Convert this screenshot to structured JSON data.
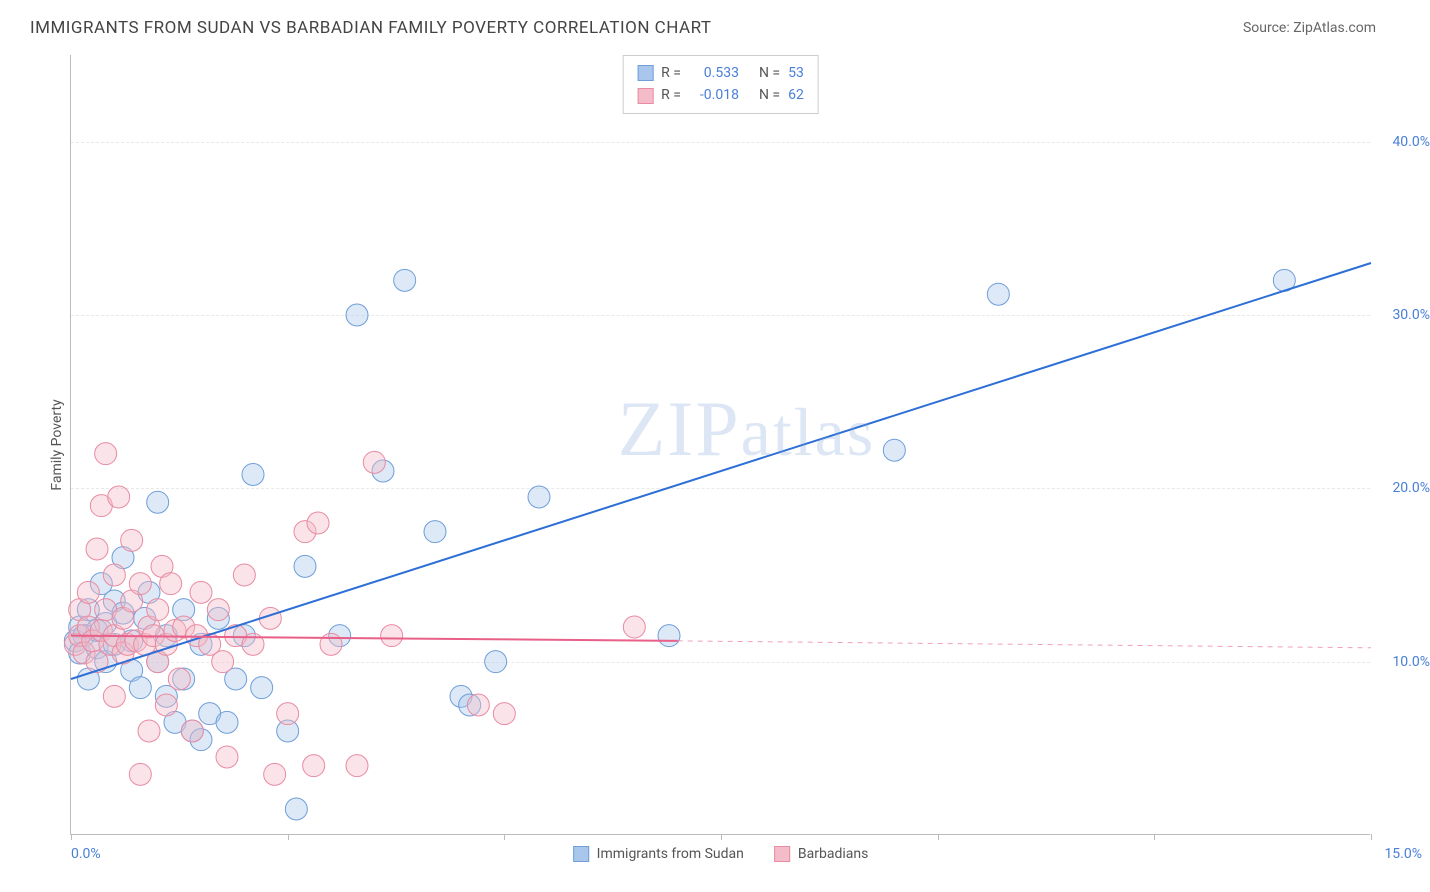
{
  "title": "IMMIGRANTS FROM SUDAN VS BARBADIAN FAMILY POVERTY CORRELATION CHART",
  "source_label": "Source: ",
  "source_name": "ZipAtlas.com",
  "watermark": "ZIPatlas",
  "chart": {
    "type": "scatter",
    "ylabel": "Family Poverty",
    "xlim": [
      0,
      15
    ],
    "ylim": [
      0,
      45
    ],
    "x_min_label": "0.0%",
    "x_max_label": "15.0%",
    "y_ticks": [
      10,
      20,
      30,
      40
    ],
    "y_tick_labels": [
      "10.0%",
      "20.0%",
      "30.0%",
      "40.0%"
    ],
    "x_ticks": [
      0,
      2.5,
      5,
      7.5,
      10,
      12.5,
      15
    ],
    "background_color": "#ffffff",
    "grid_color": "#e8e8e8",
    "axis_color": "#bbbbbb",
    "tick_label_color": "#4a7fd8",
    "marker_radius": 11,
    "marker_opacity": 0.4,
    "line_width": 2,
    "series": [
      {
        "name": "Immigrants from Sudan",
        "color_fill": "#a9c7ec",
        "color_stroke": "#6f9ed9",
        "line_color": "#2d6fd6",
        "R": "0.533",
        "N": "53",
        "regression": {
          "x1": 0,
          "y1": 9.0,
          "x2": 15,
          "y2": 33.0
        },
        "points": [
          [
            0.05,
            11.2
          ],
          [
            0.1,
            10.5
          ],
          [
            0.1,
            12.0
          ],
          [
            0.15,
            11.5
          ],
          [
            0.2,
            9.0
          ],
          [
            0.2,
            13.0
          ],
          [
            0.3,
            10.8
          ],
          [
            0.3,
            11.8
          ],
          [
            0.35,
            14.5
          ],
          [
            0.4,
            12.2
          ],
          [
            0.4,
            10.0
          ],
          [
            0.5,
            11.0
          ],
          [
            0.5,
            13.5
          ],
          [
            0.6,
            16.0
          ],
          [
            0.6,
            12.8
          ],
          [
            0.7,
            9.5
          ],
          [
            0.7,
            11.2
          ],
          [
            0.8,
            8.5
          ],
          [
            0.85,
            12.5
          ],
          [
            0.9,
            14.0
          ],
          [
            1.0,
            10.0
          ],
          [
            1.0,
            19.2
          ],
          [
            1.1,
            8.0
          ],
          [
            1.1,
            11.5
          ],
          [
            1.2,
            6.5
          ],
          [
            1.3,
            13.0
          ],
          [
            1.3,
            9.0
          ],
          [
            1.4,
            6.0
          ],
          [
            1.5,
            11.0
          ],
          [
            1.5,
            5.5
          ],
          [
            1.6,
            7.0
          ],
          [
            1.7,
            12.5
          ],
          [
            1.8,
            6.5
          ],
          [
            1.9,
            9.0
          ],
          [
            2.0,
            11.5
          ],
          [
            2.1,
            20.8
          ],
          [
            2.2,
            8.5
          ],
          [
            2.5,
            6.0
          ],
          [
            2.6,
            1.5
          ],
          [
            2.7,
            15.5
          ],
          [
            3.1,
            11.5
          ],
          [
            3.3,
            30.0
          ],
          [
            3.6,
            21.0
          ],
          [
            3.85,
            32.0
          ],
          [
            4.2,
            17.5
          ],
          [
            4.5,
            8.0
          ],
          [
            4.6,
            7.5
          ],
          [
            4.9,
            10.0
          ],
          [
            5.4,
            19.5
          ],
          [
            6.9,
            11.5
          ],
          [
            9.5,
            22.2
          ],
          [
            10.7,
            31.2
          ],
          [
            14.0,
            32.0
          ]
        ]
      },
      {
        "name": "Barbadians",
        "color_fill": "#f3bcc8",
        "color_stroke": "#e88ba3",
        "line_color": "#e85f88",
        "R": "-0.018",
        "N": "62",
        "regression": {
          "x1": 0,
          "y1": 11.5,
          "x2": 7,
          "y2": 11.2
        },
        "regression_dash": {
          "x1": 7,
          "y1": 11.2,
          "x2": 15,
          "y2": 10.8
        },
        "points": [
          [
            0.05,
            11.0
          ],
          [
            0.1,
            11.5
          ],
          [
            0.1,
            13.0
          ],
          [
            0.15,
            10.5
          ],
          [
            0.2,
            12.0
          ],
          [
            0.2,
            14.0
          ],
          [
            0.25,
            11.2
          ],
          [
            0.3,
            16.5
          ],
          [
            0.3,
            10.0
          ],
          [
            0.35,
            11.8
          ],
          [
            0.35,
            19.0
          ],
          [
            0.4,
            13.0
          ],
          [
            0.4,
            22.0
          ],
          [
            0.45,
            11.0
          ],
          [
            0.5,
            11.5
          ],
          [
            0.5,
            15.0
          ],
          [
            0.5,
            8.0
          ],
          [
            0.55,
            19.5
          ],
          [
            0.6,
            12.5
          ],
          [
            0.6,
            10.5
          ],
          [
            0.65,
            11.0
          ],
          [
            0.7,
            17.0
          ],
          [
            0.7,
            13.5
          ],
          [
            0.75,
            11.2
          ],
          [
            0.8,
            14.5
          ],
          [
            0.8,
            3.5
          ],
          [
            0.85,
            11.0
          ],
          [
            0.9,
            12.0
          ],
          [
            0.9,
            6.0
          ],
          [
            0.95,
            11.5
          ],
          [
            1.0,
            13.0
          ],
          [
            1.0,
            10.0
          ],
          [
            1.05,
            15.5
          ],
          [
            1.1,
            11.0
          ],
          [
            1.1,
            7.5
          ],
          [
            1.15,
            14.5
          ],
          [
            1.2,
            11.8
          ],
          [
            1.25,
            9.0
          ],
          [
            1.3,
            12.0
          ],
          [
            1.4,
            6.0
          ],
          [
            1.45,
            11.5
          ],
          [
            1.5,
            14.0
          ],
          [
            1.6,
            11.0
          ],
          [
            1.7,
            13.0
          ],
          [
            1.75,
            10.0
          ],
          [
            1.8,
            4.5
          ],
          [
            1.9,
            11.5
          ],
          [
            2.0,
            15.0
          ],
          [
            2.1,
            11.0
          ],
          [
            2.3,
            12.5
          ],
          [
            2.35,
            3.5
          ],
          [
            2.5,
            7.0
          ],
          [
            2.7,
            17.5
          ],
          [
            2.8,
            4.0
          ],
          [
            2.85,
            18.0
          ],
          [
            3.0,
            11.0
          ],
          [
            3.3,
            4.0
          ],
          [
            3.5,
            21.5
          ],
          [
            3.7,
            11.5
          ],
          [
            4.7,
            7.5
          ],
          [
            5.0,
            7.0
          ],
          [
            6.5,
            12.0
          ]
        ]
      }
    ]
  },
  "legend_top": {
    "r_prefix": "R",
    "eq": "=",
    "n_prefix": "N",
    "n_eq": "="
  }
}
